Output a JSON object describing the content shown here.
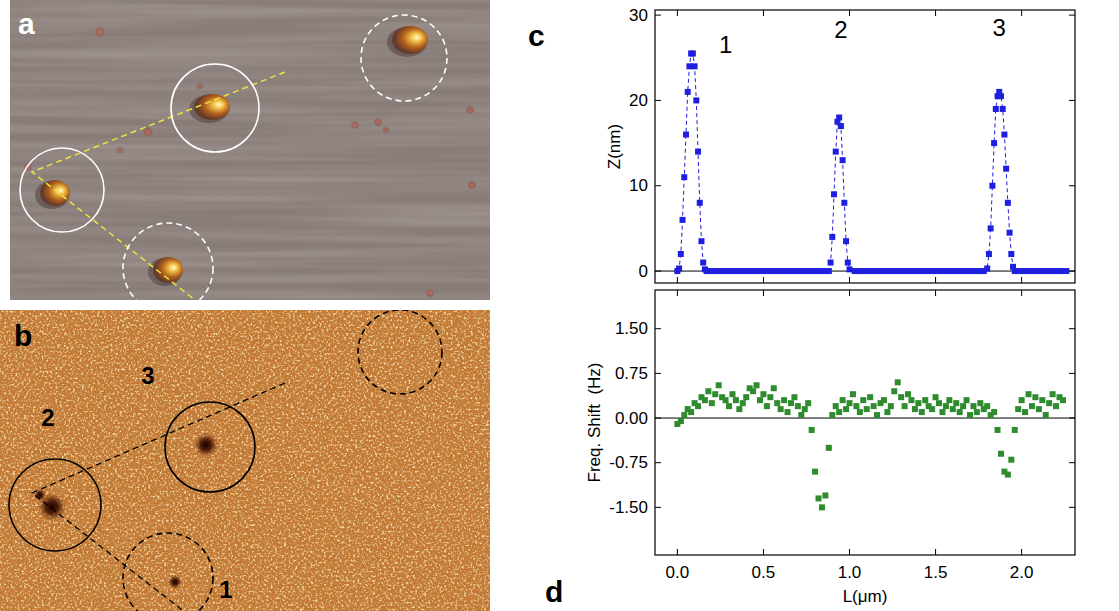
{
  "image_panels": [
    {
      "letter": "a"
    },
    {
      "letter": "b",
      "labels": [
        "2",
        "3",
        "1"
      ]
    }
  ],
  "chart_letters": [
    "c",
    "d"
  ],
  "chart_data": [
    {
      "type": "line",
      "ylabel": "Z(nm)",
      "xlim": [
        -0.13,
        2.31
      ],
      "xticks": [
        0,
        0.5,
        1,
        1.5,
        2
      ],
      "ylim": [
        -1.4,
        30.6
      ],
      "yticks": [
        0,
        10,
        20,
        30
      ],
      "tick_labels": "y",
      "annotations": [
        {
          "text": "1",
          "x": 0.28,
          "y": 26.5
        },
        {
          "text": "2",
          "x": 0.95,
          "y": 28.3
        },
        {
          "text": "3",
          "x": 1.87,
          "y": 28.6
        }
      ],
      "series": [
        {
          "color": "#1f1fe0",
          "marker": "square",
          "line_style": "dashed",
          "x": [
            0,
            0.01,
            0.02,
            0.03,
            0.04,
            0.05,
            0.06,
            0.07,
            0.08,
            0.09,
            0.1,
            0.11,
            0.12,
            0.13,
            0.14,
            0.15,
            0.16,
            0.17,
            0.2,
            0.23,
            0.26,
            0.29,
            0.32,
            0.35,
            0.38,
            0.41,
            0.44,
            0.47,
            0.5,
            0.53,
            0.56,
            0.59,
            0.62,
            0.65,
            0.68,
            0.71,
            0.74,
            0.77,
            0.8,
            0.83,
            0.86,
            0.88,
            0.89,
            0.9,
            0.91,
            0.92,
            0.93,
            0.94,
            0.95,
            0.96,
            0.97,
            0.98,
            0.99,
            1,
            1.03,
            1.06,
            1.09,
            1.12,
            1.15,
            1.18,
            1.21,
            1.24,
            1.27,
            1.3,
            1.33,
            1.36,
            1.39,
            1.42,
            1.45,
            1.48,
            1.51,
            1.54,
            1.57,
            1.6,
            1.63,
            1.66,
            1.69,
            1.72,
            1.75,
            1.78,
            1.8,
            1.81,
            1.82,
            1.83,
            1.84,
            1.85,
            1.86,
            1.87,
            1.88,
            1.89,
            1.9,
            1.91,
            1.92,
            1.93,
            1.94,
            1.95,
            1.96,
            1.99,
            2.02,
            2.05,
            2.08,
            2.11,
            2.14,
            2.17,
            2.2,
            2.23,
            2.26
          ],
          "values": [
            0,
            0.3,
            2,
            6,
            11,
            16,
            21,
            24,
            25.5,
            25.5,
            24,
            20,
            14,
            8,
            3.5,
            1,
            0.2,
            0,
            0,
            0,
            0,
            0,
            0,
            0,
            0,
            0,
            0,
            0,
            0,
            0,
            0,
            0,
            0,
            0,
            0,
            0,
            0,
            0,
            0,
            0,
            0,
            0,
            1,
            4,
            9,
            14,
            17.5,
            18,
            17,
            13,
            8,
            3.5,
            1,
            0.2,
            0,
            0,
            0,
            0,
            0,
            0,
            0,
            0,
            0,
            0,
            0,
            0,
            0,
            0,
            0,
            0,
            0,
            0,
            0,
            0,
            0,
            0,
            0,
            0,
            0,
            0,
            0.3,
            2,
            5,
            10,
            15,
            19,
            20.5,
            21,
            20.5,
            19,
            16,
            12,
            8,
            4.5,
            2,
            0.5,
            0,
            0,
            0,
            0,
            0,
            0,
            0,
            0,
            0,
            0,
            0
          ]
        }
      ]
    },
    {
      "type": "scatter",
      "ylabel": "Freq. Shift  (Hz)",
      "xlabel": "L(μm)",
      "xlim": [
        -0.13,
        2.31
      ],
      "xticks": [
        {
          "value": 0,
          "label": "0.0"
        },
        0.5,
        {
          "value": 1,
          "label": "1.0"
        },
        1.5,
        {
          "value": 2,
          "label": "2.0"
        }
      ],
      "ylim": [
        -2.3,
        2.15
      ],
      "yticks": [
        {
          "value": -1.5,
          "label": "-1.50"
        },
        {
          "value": -0.75,
          "label": "-0.75"
        },
        {
          "value": 0,
          "label": "0.00"
        },
        {
          "value": 0.75,
          "label": "0.75"
        },
        {
          "value": 1.5,
          "label": "1.50"
        }
      ],
      "tick_labels": true,
      "series": [
        {
          "color": "#2e8b2e",
          "marker": "square",
          "x": [
            0,
            0.02,
            0.04,
            0.06,
            0.08,
            0.1,
            0.12,
            0.14,
            0.16,
            0.18,
            0.2,
            0.22,
            0.24,
            0.26,
            0.28,
            0.3,
            0.32,
            0.34,
            0.36,
            0.38,
            0.4,
            0.42,
            0.44,
            0.46,
            0.48,
            0.5,
            0.52,
            0.54,
            0.56,
            0.58,
            0.6,
            0.62,
            0.64,
            0.66,
            0.68,
            0.7,
            0.72,
            0.74,
            0.76,
            0.78,
            0.8,
            0.82,
            0.84,
            0.86,
            0.88,
            0.9,
            0.92,
            0.94,
            0.96,
            0.98,
            1,
            1.02,
            1.04,
            1.06,
            1.08,
            1.1,
            1.12,
            1.14,
            1.16,
            1.18,
            1.2,
            1.22,
            1.24,
            1.26,
            1.28,
            1.3,
            1.32,
            1.34,
            1.36,
            1.38,
            1.4,
            1.42,
            1.44,
            1.46,
            1.48,
            1.5,
            1.52,
            1.54,
            1.56,
            1.58,
            1.6,
            1.62,
            1.64,
            1.66,
            1.68,
            1.7,
            1.72,
            1.74,
            1.76,
            1.78,
            1.8,
            1.82,
            1.84,
            1.86,
            1.88,
            1.9,
            1.92,
            1.94,
            1.96,
            1.98,
            2,
            2.02,
            2.04,
            2.06,
            2.08,
            2.1,
            2.12,
            2.14,
            2.16,
            2.18,
            2.2,
            2.22,
            2.24
          ],
          "values": [
            -0.1,
            -0.05,
            0.05,
            0.15,
            0.1,
            0.25,
            0.2,
            0.35,
            0.3,
            0.45,
            0.25,
            0.4,
            0.55,
            0.35,
            0.3,
            0.2,
            0.4,
            0.3,
            0.15,
            0.25,
            0.35,
            0.5,
            0.45,
            0.55,
            0.3,
            0.4,
            0.2,
            0.35,
            0.5,
            0.25,
            0.15,
            0.3,
            0.1,
            0.25,
            0.35,
            0.2,
            0.05,
            0.15,
            0.25,
            -0.2,
            -0.9,
            -1.35,
            -1.5,
            -1.3,
            -0.5,
            0.05,
            0.2,
            0.1,
            0.3,
            0.15,
            0.25,
            0.4,
            0.2,
            0.1,
            0.3,
            0.15,
            0.35,
            0.2,
            0.05,
            0.25,
            0.3,
            0.1,
            0.2,
            0.45,
            0.6,
            0.35,
            0.2,
            0.4,
            0.3,
            0.15,
            0.25,
            0.1,
            0.3,
            0.2,
            0.15,
            0.35,
            0.25,
            0.1,
            0.2,
            0.3,
            0.15,
            0.25,
            0.1,
            0.2,
            0.3,
            0.05,
            0.2,
            0.1,
            0.25,
            0.15,
            0.2,
            0.05,
            0.1,
            -0.2,
            -0.6,
            -0.9,
            -0.95,
            -0.7,
            -0.2,
            0.15,
            0.3,
            0.1,
            0.4,
            0.2,
            0.35,
            0.15,
            0.3,
            0.05,
            0.25,
            0.4,
            0.2,
            0.35,
            0.3
          ]
        }
      ]
    }
  ]
}
